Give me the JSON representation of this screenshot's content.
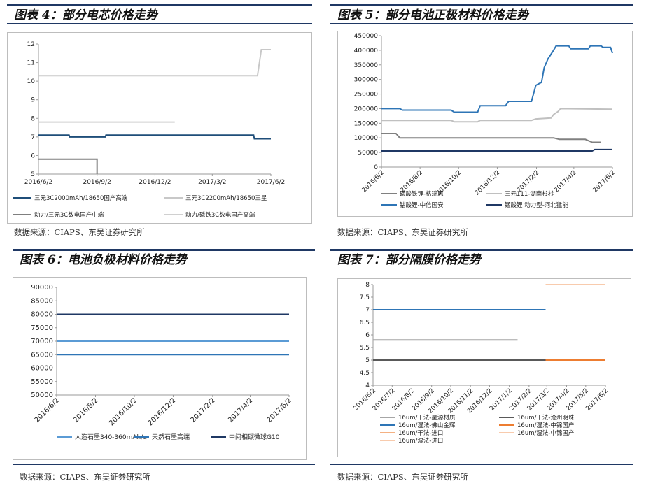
{
  "panels": [
    {
      "heading": "图表 4：部分电芯价格走势",
      "source": "数据来源：CIAPS、东吴证券研究所",
      "chart_data": {
        "type": "line",
        "x_ticks": [
          "2016/6/2",
          "2016/9/2",
          "2016/12/2",
          "2017/3/2",
          "2017/6/2"
        ],
        "ylim": [
          5,
          12
        ],
        "y_ticks": [
          5,
          6,
          7,
          8,
          9,
          10,
          11,
          12
        ],
        "series": [
          {
            "name": "三元3C2000mAh/18650国产高端",
            "color": "#1f4e79",
            "points": [
              [
                "2016/6/2",
                7.1
              ],
              [
                "2016/7/20",
                7.1
              ],
              [
                "2016/7/21",
                7.0
              ],
              [
                "2016/9/15",
                7.0
              ],
              [
                "2016/9/16",
                7.1
              ],
              [
                "2017/5/6",
                7.1
              ],
              [
                "2017/5/7",
                6.9
              ],
              [
                "2017/6/2",
                6.9
              ]
            ]
          },
          {
            "name": "三元3C2200mAh/18650三星",
            "color": "#c8c8c8",
            "points": [
              [
                "2016/6/2",
                10.3
              ],
              [
                "2017/5/12",
                10.3
              ],
              [
                "2017/5/18",
                11.7
              ],
              [
                "2017/6/2",
                11.7
              ]
            ]
          },
          {
            "name": "动力/三元3C数电国产中端",
            "color": "#7f7f7f",
            "points": [
              [
                "2016/6/2",
                5.8
              ],
              [
                "2016/9/2",
                5.8
              ],
              [
                "2016/9/2",
                5.0
              ]
            ]
          },
          {
            "name": "动力/磷铁3C数电国产高端",
            "color": "#d0d0d0",
            "points": [
              [
                "2016/6/2",
                7.8
              ],
              [
                "2017/1/2",
                7.8
              ]
            ]
          }
        ]
      }
    },
    {
      "heading": "图表 5：部分电池正极材料价格走势",
      "source": "数据来源：CIAPS、东吴证券研究所",
      "chart_data": {
        "type": "line",
        "x_ticks": [
          "2016/6/2",
          "2016/8/2",
          "2016/10/2",
          "2016/12/2",
          "2017/2/2",
          "2017/4/2",
          "2017/6/2"
        ],
        "ylim": [
          0,
          450000
        ],
        "y_ticks": [
          0,
          50000,
          100000,
          150000,
          200000,
          250000,
          300000,
          350000,
          400000,
          450000
        ],
        "series": [
          {
            "name": "磷酸铁锂-格瑞思",
            "color": "#808080",
            "points": [
              [
                "2016/6/2",
                115000
              ],
              [
                "2016/6/25",
                115000
              ],
              [
                "2016/7/1",
                100000
              ],
              [
                "2017/3/1",
                100000
              ],
              [
                "2017/3/10",
                95000
              ],
              [
                "2017/4/20",
                95000
              ],
              [
                "2017/5/1",
                85000
              ],
              [
                "2017/5/15",
                85000
              ]
            ]
          },
          {
            "name": "三元111-湖南杉杉",
            "color": "#c0c0c0",
            "points": [
              [
                "2016/6/2",
                160000
              ],
              [
                "2016/9/20",
                160000
              ],
              [
                "2016/9/25",
                155000
              ],
              [
                "2016/11/1",
                155000
              ],
              [
                "2016/11/5",
                160000
              ],
              [
                "2017/1/25",
                160000
              ],
              [
                "2017/2/1",
                165000
              ],
              [
                "2017/2/25",
                168000
              ],
              [
                "2017/3/1",
                180000
              ],
              [
                "2017/3/8",
                190000
              ],
              [
                "2017/3/12",
                200000
              ],
              [
                "2017/6/2",
                198000
              ]
            ]
          },
          {
            "name": "钴酸锂-中信国安",
            "color": "#2e75b6",
            "points": [
              [
                "2016/6/2",
                200000
              ],
              [
                "2016/7/1",
                200000
              ],
              [
                "2016/7/5",
                195000
              ],
              [
                "2016/9/20",
                195000
              ],
              [
                "2016/9/25",
                188000
              ],
              [
                "2016/11/1",
                188000
              ],
              [
                "2016/11/5",
                210000
              ],
              [
                "2016/12/15",
                210000
              ],
              [
                "2016/12/20",
                225000
              ],
              [
                "2017/1/25",
                225000
              ],
              [
                "2017/2/1",
                280000
              ],
              [
                "2017/2/10",
                290000
              ],
              [
                "2017/2/14",
                340000
              ],
              [
                "2017/2/20",
                370000
              ],
              [
                "2017/3/1",
                400000
              ],
              [
                "2017/3/5",
                415000
              ],
              [
                "2017/3/25",
                415000
              ],
              [
                "2017/3/28",
                405000
              ],
              [
                "2017/4/25",
                405000
              ],
              [
                "2017/4/28",
                415000
              ],
              [
                "2017/5/15",
                415000
              ],
              [
                "2017/5/18",
                410000
              ],
              [
                "2017/5/30",
                410000
              ],
              [
                "2017/6/2",
                390000
              ]
            ]
          },
          {
            "name": "锰酸锂 动力型-河北猛能",
            "color": "#1f3864",
            "points": [
              [
                "2016/6/2",
                55000
              ],
              [
                "2017/5/1",
                55000
              ],
              [
                "2017/5/5",
                60000
              ],
              [
                "2017/6/2",
                60000
              ]
            ]
          }
        ]
      }
    },
    {
      "heading": "图表 6：电池负极材料价格走势",
      "source": "数据来源：CIAPS、东吴证券研究所",
      "chart_data": {
        "type": "line",
        "x_ticks": [
          "2016/6/2",
          "2016/8/2",
          "2016/10/2",
          "2016/12/2",
          "2017/2/2",
          "2017/4/2",
          "2017/6/2"
        ],
        "ylim": [
          50000,
          90000
        ],
        "y_ticks": [
          50000,
          55000,
          60000,
          65000,
          70000,
          75000,
          80000,
          85000,
          90000
        ],
        "series": [
          {
            "name": "人造石墨340-360mAh/g",
            "color": "#5b9bd5",
            "points": [
              [
                "2016/6/2",
                70000
              ],
              [
                "2017/6/2",
                70000
              ]
            ]
          },
          {
            "name": "天然石墨高端",
            "color": "#2e75b6",
            "points": [
              [
                "2016/6/2",
                65000
              ],
              [
                "2017/6/2",
                65000
              ]
            ]
          },
          {
            "name": "中间相碳微球G10",
            "color": "#1f3864",
            "points": [
              [
                "2016/6/2",
                80000
              ],
              [
                "2017/6/2",
                80000
              ]
            ]
          }
        ]
      }
    },
    {
      "heading": "图表 7：部分隔膜价格走势",
      "source": "数据来源：CIAPS、东吴证券研究所",
      "chart_data": {
        "type": "line",
        "x_ticks": [
          "2016/6/2",
          "2016/7/2",
          "2016/8/2",
          "2016/9/2",
          "2016/10/2",
          "2016/11/2",
          "2016/12/2",
          "2017/1/2",
          "2017/2/2",
          "2017/3/2",
          "2017/4/2",
          "2017/5/2",
          "2017/6/2"
        ],
        "ylim": [
          4,
          8
        ],
        "y_ticks": [
          4,
          4.5,
          5,
          5.5,
          6,
          6.5,
          7,
          7.5,
          8
        ],
        "series": [
          {
            "name": "16um/干法-星源材质",
            "color": "#a6a6a6",
            "points": [
              [
                "2016/6/2",
                5.8
              ],
              [
                "2017/1/15",
                5.8
              ]
            ]
          },
          {
            "name": "16um/干法-沧州明珠",
            "color": "#595959",
            "points": [
              [
                "2016/6/2",
                5.0
              ],
              [
                "2017/6/2",
                5.0
              ]
            ]
          },
          {
            "name": "16um/湿法-佛山金辉",
            "color": "#2e75b6",
            "points": [
              [
                "2016/6/2",
                7.0
              ],
              [
                "2017/2/28",
                7.0
              ]
            ]
          },
          {
            "name": "16um/湿法-中锦国产",
            "color": "#ed7d31",
            "points": [
              [
                "2017/2/28",
                5.0
              ],
              [
                "2017/6/2",
                5.0
              ]
            ]
          },
          {
            "name": "16um/干法-进口",
            "color": "#f4b183",
            "points": []
          },
          {
            "name": "16um/湿法-中锦国产",
            "color": "#f8cbad",
            "points": []
          },
          {
            "name": "16um/湿法-进口",
            "color": "#f8cbad",
            "points": [
              [
                "2017/2/28",
                8.0
              ],
              [
                "2017/6/2",
                8.0
              ]
            ]
          }
        ]
      }
    }
  ]
}
